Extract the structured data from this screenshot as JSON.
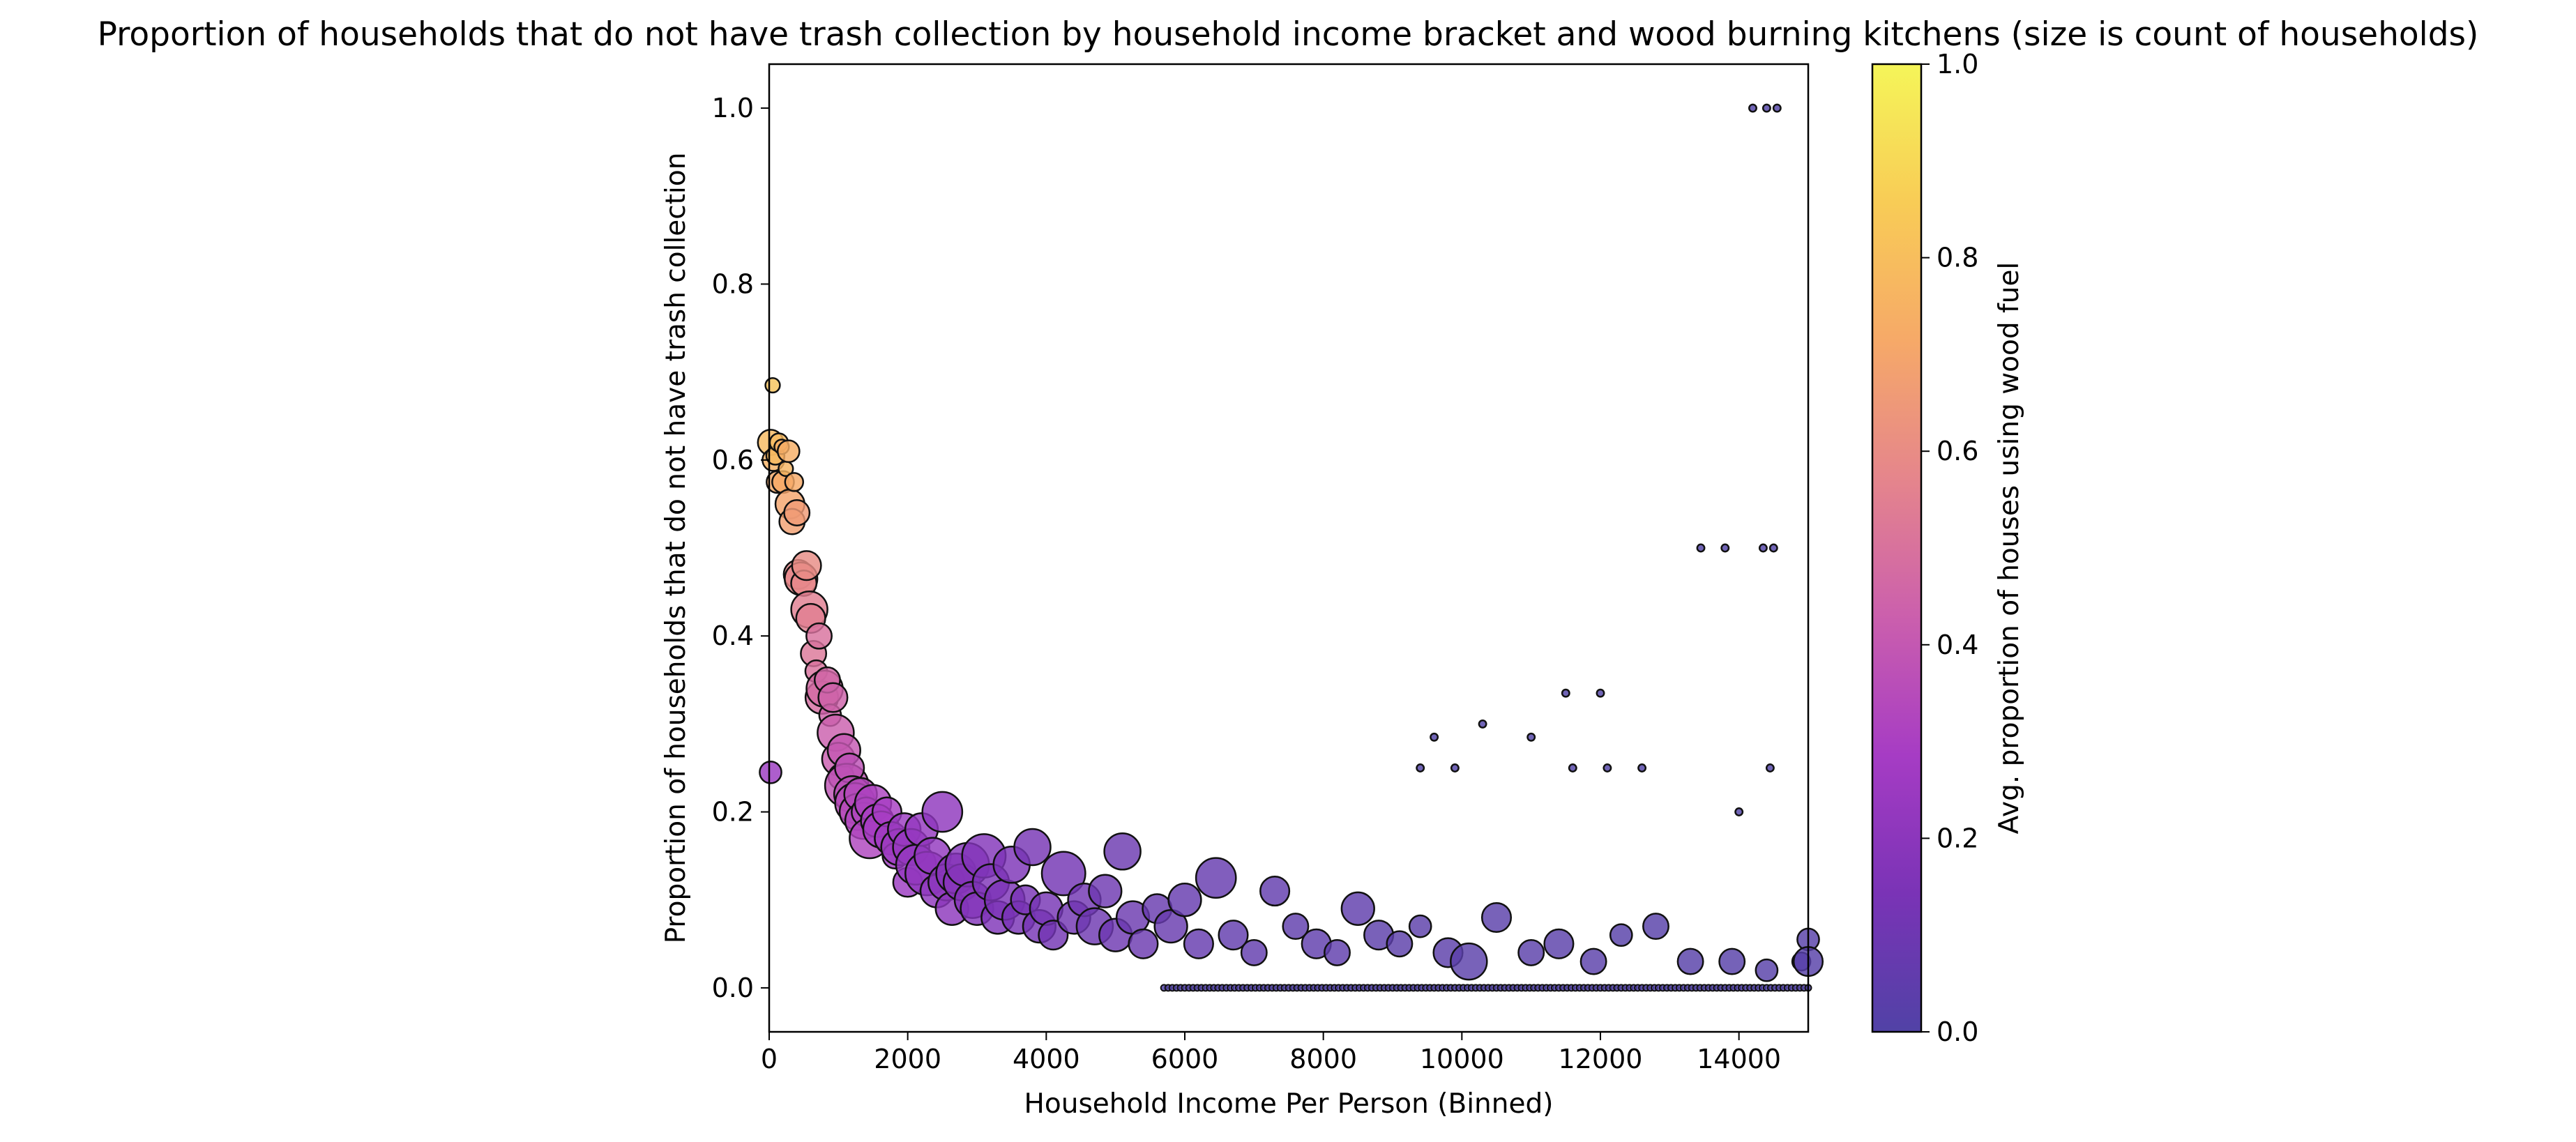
{
  "chart_data": {
    "type": "scatter",
    "title": "Proportion of households that do not have trash collection by household income bracket and wood burning kitchens (size is count of households)",
    "xlabel": "Household Income Per Person (Binned)",
    "ylabel": "Proportion of households that do not have trash collection",
    "xlim": [
      0,
      15000
    ],
    "ylim": [
      -0.05,
      1.05
    ],
    "x_ticks": [
      0,
      2000,
      4000,
      6000,
      8000,
      10000,
      12000,
      14000
    ],
    "x_tick_labels": [
      "0",
      "2000",
      "4000",
      "6000",
      "8000",
      "10000",
      "12000",
      "14000"
    ],
    "y_ticks": [
      0.0,
      0.2,
      0.4,
      0.6,
      0.8,
      1.0
    ],
    "y_tick_labels": [
      "0.0",
      "0.2",
      "0.4",
      "0.6",
      "0.8",
      "1.0"
    ],
    "grid": false,
    "legend": "none",
    "colorbar": {
      "label": "Avg. proportion of houses using wood fuel",
      "colormap": "plasma",
      "range": [
        0,
        1
      ],
      "ticks": [
        0.0,
        0.2,
        0.4,
        0.6,
        0.8,
        1.0
      ],
      "tick_labels": [
        "0.0",
        "0.2",
        "0.4",
        "0.6",
        "0.8",
        "1.0"
      ],
      "colors": [
        "#5142a6",
        "#7a33b6",
        "#a63cc4",
        "#cb5fad",
        "#e5858c",
        "#f6a968",
        "#f8cc56",
        "#f5f559"
      ]
    },
    "points": [
      [
        20,
        0.62,
        0.78,
        7
      ],
      [
        50,
        0.685,
        0.82,
        4
      ],
      [
        60,
        0.6,
        0.75,
        6
      ],
      [
        90,
        0.605,
        0.78,
        5
      ],
      [
        120,
        0.575,
        0.72,
        6
      ],
      [
        140,
        0.62,
        0.78,
        5
      ],
      [
        180,
        0.615,
        0.74,
        4
      ],
      [
        200,
        0.575,
        0.72,
        6
      ],
      [
        240,
        0.59,
        0.76,
        4
      ],
      [
        280,
        0.61,
        0.74,
        6
      ],
      [
        300,
        0.55,
        0.7,
        8
      ],
      [
        330,
        0.53,
        0.68,
        7
      ],
      [
        360,
        0.575,
        0.72,
        5
      ],
      [
        400,
        0.54,
        0.66,
        7
      ],
      [
        420,
        0.47,
        0.58,
        8
      ],
      [
        460,
        0.465,
        0.58,
        9
      ],
      [
        500,
        0.46,
        0.58,
        7
      ],
      [
        540,
        0.48,
        0.6,
        8
      ],
      [
        580,
        0.43,
        0.55,
        10
      ],
      [
        600,
        0.42,
        0.55,
        8
      ],
      [
        640,
        0.38,
        0.52,
        7
      ],
      [
        680,
        0.36,
        0.5,
        6
      ],
      [
        720,
        0.4,
        0.5,
        7
      ],
      [
        760,
        0.33,
        0.48,
        9
      ],
      [
        800,
        0.34,
        0.47,
        10
      ],
      [
        840,
        0.35,
        0.46,
        7
      ],
      [
        880,
        0.31,
        0.44,
        6
      ],
      [
        920,
        0.33,
        0.44,
        8
      ],
      [
        960,
        0.29,
        0.43,
        10
      ],
      [
        1000,
        0.26,
        0.42,
        9
      ],
      [
        1040,
        0.24,
        0.4,
        7
      ],
      [
        1080,
        0.27,
        0.4,
        9
      ],
      [
        1120,
        0.23,
        0.38,
        12
      ],
      [
        1160,
        0.25,
        0.37,
        8
      ],
      [
        1200,
        0.22,
        0.36,
        10
      ],
      [
        1240,
        0.21,
        0.35,
        11
      ],
      [
        1280,
        0.2,
        0.35,
        10
      ],
      [
        1320,
        0.22,
        0.34,
        9
      ],
      [
        1360,
        0.19,
        0.33,
        10
      ],
      [
        1400,
        0.2,
        0.33,
        8
      ],
      [
        1450,
        0.17,
        0.32,
        11
      ],
      [
        1500,
        0.21,
        0.31,
        10
      ],
      [
        1560,
        0.19,
        0.3,
        9
      ],
      [
        1620,
        0.18,
        0.29,
        10
      ],
      [
        1700,
        0.2,
        0.29,
        8
      ],
      [
        1760,
        0.17,
        0.27,
        9
      ],
      [
        1820,
        0.15,
        0.27,
        7
      ],
      [
        1880,
        0.16,
        0.26,
        10
      ],
      [
        1950,
        0.18,
        0.25,
        9
      ],
      [
        2000,
        0.12,
        0.25,
        8
      ],
      [
        2050,
        0.16,
        0.24,
        10
      ],
      [
        2120,
        0.14,
        0.23,
        11
      ],
      [
        2200,
        0.18,
        0.23,
        9
      ],
      [
        2280,
        0.13,
        0.22,
        12
      ],
      [
        2360,
        0.15,
        0.22,
        10
      ],
      [
        2420,
        0.11,
        0.21,
        9
      ],
      [
        2500,
        0.2,
        0.21,
        11
      ],
      [
        2560,
        0.12,
        0.2,
        10
      ],
      [
        2640,
        0.09,
        0.2,
        9
      ],
      [
        2700,
        0.13,
        0.19,
        11
      ],
      [
        2780,
        0.12,
        0.19,
        10
      ],
      [
        2860,
        0.14,
        0.18,
        12
      ],
      [
        2940,
        0.1,
        0.18,
        10
      ],
      [
        3000,
        0.09,
        0.17,
        9
      ],
      [
        3100,
        0.15,
        0.17,
        12
      ],
      [
        3200,
        0.12,
        0.16,
        10
      ],
      [
        3300,
        0.08,
        0.16,
        9
      ],
      [
        3400,
        0.1,
        0.15,
        11
      ],
      [
        3500,
        0.14,
        0.15,
        10
      ],
      [
        3600,
        0.08,
        0.14,
        9
      ],
      [
        3700,
        0.1,
        0.14,
        8
      ],
      [
        3800,
        0.16,
        0.13,
        10
      ],
      [
        3900,
        0.07,
        0.13,
        9
      ],
      [
        4000,
        0.09,
        0.13,
        9
      ],
      [
        4100,
        0.06,
        0.12,
        8
      ],
      [
        4250,
        0.13,
        0.12,
        12
      ],
      [
        4400,
        0.08,
        0.11,
        9
      ],
      [
        4550,
        0.1,
        0.11,
        9
      ],
      [
        4700,
        0.07,
        0.1,
        10
      ],
      [
        4850,
        0.11,
        0.1,
        9
      ],
      [
        5000,
        0.06,
        0.1,
        9
      ],
      [
        5100,
        0.155,
        0.09,
        10
      ],
      [
        5250,
        0.08,
        0.09,
        9
      ],
      [
        5400,
        0.05,
        0.09,
        8
      ],
      [
        5600,
        0.09,
        0.08,
        8
      ],
      [
        5800,
        0.07,
        0.08,
        9
      ],
      [
        6000,
        0.1,
        0.07,
        9
      ],
      [
        6200,
        0.05,
        0.07,
        8
      ],
      [
        6450,
        0.125,
        0.07,
        11
      ],
      [
        6700,
        0.06,
        0.06,
        8
      ],
      [
        7000,
        0.04,
        0.06,
        7
      ],
      [
        7300,
        0.11,
        0.06,
        8
      ],
      [
        7600,
        0.07,
        0.05,
        7
      ],
      [
        7900,
        0.05,
        0.05,
        8
      ],
      [
        8200,
        0.04,
        0.05,
        7
      ],
      [
        8500,
        0.09,
        0.05,
        9
      ],
      [
        8800,
        0.06,
        0.04,
        8
      ],
      [
        9100,
        0.05,
        0.04,
        7
      ],
      [
        9400,
        0.07,
        0.04,
        6
      ],
      [
        9800,
        0.04,
        0.04,
        8
      ],
      [
        10100,
        0.03,
        0.03,
        10
      ],
      [
        10500,
        0.08,
        0.03,
        8
      ],
      [
        11000,
        0.04,
        0.03,
        7
      ],
      [
        11400,
        0.05,
        0.03,
        8
      ],
      [
        11900,
        0.03,
        0.03,
        7
      ],
      [
        12300,
        0.06,
        0.02,
        6
      ],
      [
        12800,
        0.07,
        0.02,
        7
      ],
      [
        13300,
        0.03,
        0.02,
        7
      ],
      [
        13900,
        0.03,
        0.02,
        7
      ],
      [
        14400,
        0.02,
        0.02,
        6
      ],
      [
        14900,
        0.03,
        0.02,
        5
      ],
      [
        15000,
        0.055,
        0.02,
        6
      ],
      [
        15000,
        0.03,
        0.02,
        8
      ],
      [
        20,
        0.245,
        0.25,
        6
      ],
      [
        14200,
        1.0,
        0.0,
        2
      ],
      [
        14400,
        1.0,
        0.0,
        2
      ],
      [
        14550,
        1.0,
        0.0,
        2
      ],
      [
        13450,
        0.5,
        0.0,
        2
      ],
      [
        13800,
        0.5,
        0.0,
        2
      ],
      [
        14350,
        0.5,
        0.0,
        2
      ],
      [
        14500,
        0.5,
        0.0,
        2
      ],
      [
        11500,
        0.335,
        0.0,
        2
      ],
      [
        12000,
        0.335,
        0.0,
        2
      ],
      [
        10300,
        0.3,
        0.0,
        2
      ],
      [
        9600,
        0.285,
        0.0,
        2
      ],
      [
        11000,
        0.285,
        0.0,
        2
      ],
      [
        9400,
        0.25,
        0.0,
        2
      ],
      [
        9900,
        0.25,
        0.0,
        2
      ],
      [
        11600,
        0.25,
        0.0,
        2
      ],
      [
        12100,
        0.25,
        0.0,
        2
      ],
      [
        12600,
        0.25,
        0.0,
        2
      ],
      [
        14450,
        0.25,
        0.0,
        2
      ],
      [
        14000,
        0.2,
        0.0,
        2
      ]
    ]
  }
}
